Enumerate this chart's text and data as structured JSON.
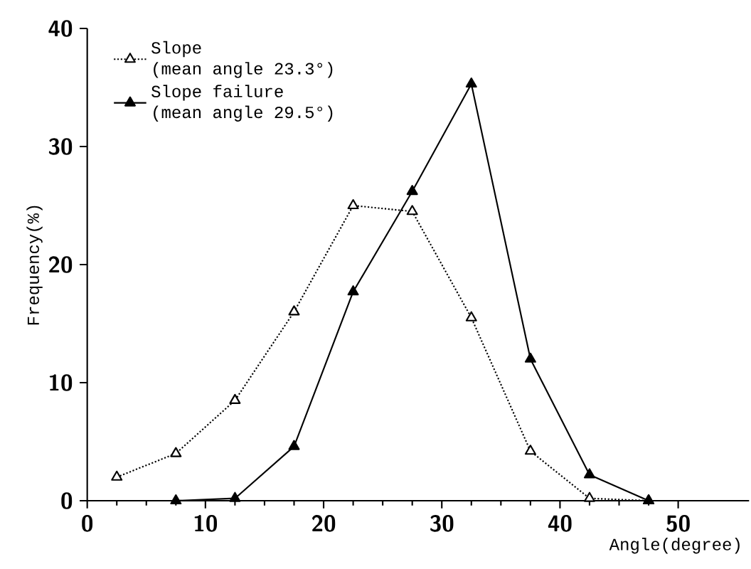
{
  "chart_data": {
    "type": "line",
    "xlabel": "Angle(degree)",
    "ylabel": "Frequency(%)",
    "xlim": [
      0,
      56
    ],
    "xticks": [
      0,
      10,
      20,
      30,
      40,
      50
    ],
    "ylim": [
      0,
      40
    ],
    "yticks": [
      0,
      10,
      20,
      30,
      40
    ],
    "grid": false,
    "legend": "top left",
    "marker": "triangle",
    "series": [
      {
        "name": "Slope\n(mean angle 23.3°)",
        "color": "#000000",
        "line_style": "dotted",
        "x": [
          2.5,
          7.5,
          12.5,
          17.5,
          22.5,
          27.5,
          32.5,
          37.5,
          42.5,
          47.5
        ],
        "values": [
          2,
          4,
          8.5,
          16,
          25,
          24.5,
          15.5,
          4.2,
          0.2,
          0
        ]
      },
      {
        "name": "Slope failure\n(mean angle 29.5°)",
        "color": "#000000",
        "line_style": "solid",
        "x": [
          7.5,
          12.5,
          17.5,
          22.5,
          27.5,
          32.5,
          37.5,
          42.5,
          47.5
        ],
        "values": [
          0,
          0.2,
          4.6,
          17.7,
          26.2,
          35.3,
          12,
          2.2,
          0
        ]
      }
    ]
  }
}
